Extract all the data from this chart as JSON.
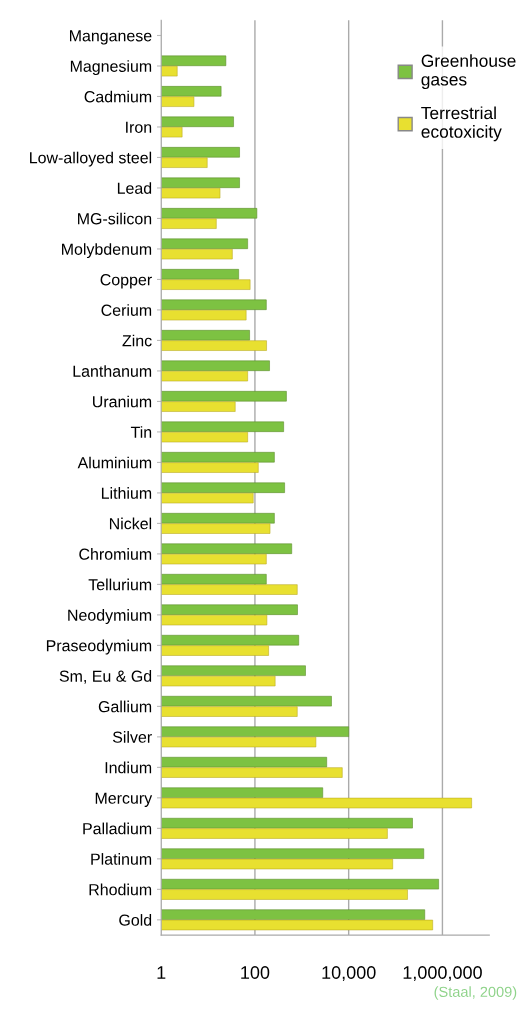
{
  "chart_data": {
    "type": "bar",
    "orientation": "horizontal",
    "log": "x",
    "categories": [
      "Manganese",
      "Magnesium",
      "Cadmium",
      "Iron",
      "Low-alloyed steel",
      "Lead",
      "MG-silicon",
      "Molybdenum",
      "Copper",
      "Cerium",
      "Zinc",
      "Lanthanum",
      "Uranium",
      "Tin",
      "Aluminium",
      "Lithium",
      "Nickel",
      "Chromium",
      "Tellurium",
      "Neodymium",
      "Praseodymium",
      "Sm, Eu & Gd",
      "Gallium",
      "Silver",
      "Indium",
      "Mercury",
      "Palladium",
      "Platinum",
      "Rhodium",
      "Gold"
    ],
    "series": [
      {
        "name": "Greenhouse gases",
        "color": "#7dc242",
        "values": [
          null,
          24,
          19,
          35,
          47,
          47,
          110,
          70,
          45,
          175,
          77,
          205,
          470,
          410,
          260,
          430,
          260,
          610,
          175,
          810,
          860,
          1200,
          4300,
          10000,
          3400,
          2800,
          230000,
          400000,
          830000,
          420000
        ]
      },
      {
        "name": "Terrestrial ecotoxicity",
        "color": "#e8e030",
        "values": [
          null,
          2.2,
          5,
          2.8,
          9.6,
          18,
          15,
          33,
          79,
          65,
          177,
          70,
          38,
          70,
          118,
          92,
          210,
          175,
          800,
          180,
          196,
          270,
          800,
          2000,
          7300,
          4200000,
          67000,
          87000,
          180000,
          620000
        ]
      }
    ],
    "xlim": [
      1,
      10000000
    ],
    "xticks": [
      1,
      100,
      {
        "value": 10000,
        "label": "10,000"
      },
      {
        "value": 1000000,
        "label": "1,000,000"
      }
    ],
    "grid": "x",
    "legend": "top right",
    "annotations": [
      "(Staal, 2009)"
    ]
  }
}
